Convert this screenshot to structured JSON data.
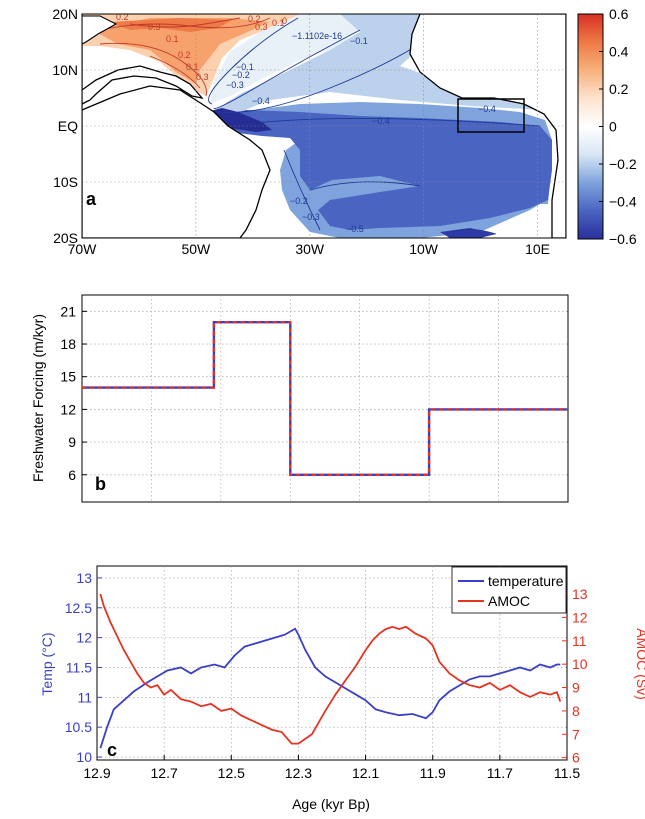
{
  "chart_data": [
    {
      "panel": "a",
      "type": "heatmap",
      "x_ticks": [
        "70W",
        "50W",
        "30W",
        "10W",
        "10E"
      ],
      "y_ticks": [
        "20N",
        "10N",
        "EQ",
        "10S",
        "20S"
      ],
      "colorbar_ticks": [
        "0.6",
        "0.4",
        "0.2",
        "0",
        "−0.2",
        "−0.4",
        "−0.6"
      ],
      "colorbar_range": [
        -0.6,
        0.6
      ],
      "colorbar_colors": [
        "#2a2f9c",
        "#4a64c2",
        "#7ea3dc",
        "#d8e6f5",
        "#ffffff",
        "#fde3cf",
        "#f7b17c",
        "#ee7a45",
        "#d73027"
      ],
      "contour_labels": [
        "0.2",
        "0.3",
        "0.1",
        "0.2",
        "0.1",
        "0.3",
        "0.2",
        "0.3",
        "0.1",
        "0",
        "−1.1102e-16",
        "−0.1",
        "−0.1",
        "−0.2",
        "−0.3",
        "−0.4",
        "−0.4",
        "−0.4",
        "−0.2",
        "−0.3",
        "−0.5"
      ],
      "grid": true
    },
    {
      "panel": "b",
      "type": "line",
      "ylabel": "Freshwater Forcing (m/kyr)",
      "y_ticks": [
        6,
        9,
        12,
        15,
        18,
        21
      ],
      "ylim": [
        3.5,
        22.5
      ],
      "xlim": [
        12.9,
        11.5
      ],
      "step_x": [
        12.9,
        12.52,
        12.52,
        12.3,
        12.3,
        11.9,
        11.9,
        11.5
      ],
      "step_y": [
        14,
        14,
        20,
        20,
        6,
        6,
        12,
        12
      ],
      "series_colors": [
        "#3b3fc4",
        "#e53322"
      ],
      "grid": true
    },
    {
      "panel": "c",
      "type": "line",
      "xlabel": "Age (kyr Bp)",
      "ylabel_left": "Temp (°C)",
      "ylabel_right": "AMOC (Sv)",
      "x_ticks": [
        12.9,
        12.7,
        12.5,
        12.3,
        12.1,
        11.9,
        11.7,
        11.5
      ],
      "xlim": [
        12.9,
        11.5
      ],
      "y_left_ticks": [
        "10",
        "10.5",
        "11",
        "11.5",
        "12",
        "12.5",
        "13"
      ],
      "y_left_range": [
        9.95,
        13.2
      ],
      "y_right_ticks": [
        "6",
        "7",
        "8",
        "9",
        "10",
        "11",
        "12",
        "13"
      ],
      "y_right_range": [
        5.9,
        14.2
      ],
      "legend_position": "top-right",
      "series": [
        {
          "name": "temperature",
          "axis": "left",
          "color": "#3b3fc4",
          "x": [
            12.89,
            12.87,
            12.85,
            12.82,
            12.79,
            12.75,
            12.72,
            12.69,
            12.65,
            12.62,
            12.59,
            12.55,
            12.52,
            12.49,
            12.46,
            12.43,
            12.4,
            12.37,
            12.34,
            12.31,
            12.3,
            12.28,
            12.25,
            12.22,
            12.19,
            12.16,
            12.13,
            12.1,
            12.07,
            12.04,
            12.0,
            11.96,
            11.92,
            11.9,
            11.88,
            11.85,
            11.82,
            11.79,
            11.76,
            11.73,
            11.7,
            11.67,
            11.64,
            11.61,
            11.58,
            11.55,
            11.53,
            11.52
          ],
          "y": [
            10.15,
            10.5,
            10.8,
            10.95,
            11.1,
            11.25,
            11.35,
            11.45,
            11.5,
            11.4,
            11.5,
            11.55,
            11.5,
            11.7,
            11.85,
            11.9,
            11.95,
            12.0,
            12.05,
            12.15,
            12.05,
            11.8,
            11.5,
            11.35,
            11.25,
            11.15,
            11.05,
            10.95,
            10.8,
            10.75,
            10.7,
            10.72,
            10.65,
            10.75,
            10.95,
            11.1,
            11.2,
            11.3,
            11.35,
            11.35,
            11.4,
            11.45,
            11.5,
            11.45,
            11.55,
            11.5,
            11.55,
            11.55
          ]
        },
        {
          "name": "AMOC",
          "axis": "right",
          "color": "#e53322",
          "x": [
            12.89,
            12.88,
            12.86,
            12.84,
            12.82,
            12.8,
            12.78,
            12.76,
            12.74,
            12.72,
            12.7,
            12.68,
            12.65,
            12.62,
            12.59,
            12.56,
            12.53,
            12.5,
            12.47,
            12.44,
            12.41,
            12.38,
            12.35,
            12.32,
            12.3,
            12.28,
            12.26,
            12.24,
            12.22,
            12.19,
            12.16,
            12.13,
            12.1,
            12.08,
            12.06,
            12.04,
            12.02,
            12.0,
            11.98,
            11.95,
            11.92,
            11.9,
            11.88,
            11.85,
            11.82,
            11.79,
            11.76,
            11.73,
            11.7,
            11.67,
            11.64,
            11.61,
            11.58,
            11.55,
            11.53,
            11.52
          ],
          "y": [
            13.0,
            12.5,
            11.8,
            11.2,
            10.6,
            10.1,
            9.6,
            9.2,
            9.0,
            9.1,
            8.7,
            8.9,
            8.5,
            8.4,
            8.2,
            8.3,
            8.0,
            8.1,
            7.8,
            7.6,
            7.4,
            7.2,
            7.1,
            6.6,
            6.6,
            6.8,
            7.0,
            7.5,
            8.0,
            8.7,
            9.3,
            9.9,
            10.6,
            11.0,
            11.3,
            11.5,
            11.6,
            11.5,
            11.6,
            11.3,
            11.1,
            10.8,
            10.1,
            9.6,
            9.3,
            9.1,
            9.0,
            9.2,
            8.9,
            9.1,
            8.8,
            8.6,
            8.8,
            8.7,
            8.8,
            8.4
          ]
        }
      ],
      "grid": true
    }
  ],
  "panel_labels": {
    "a": "a",
    "b": "b",
    "c": "c"
  }
}
